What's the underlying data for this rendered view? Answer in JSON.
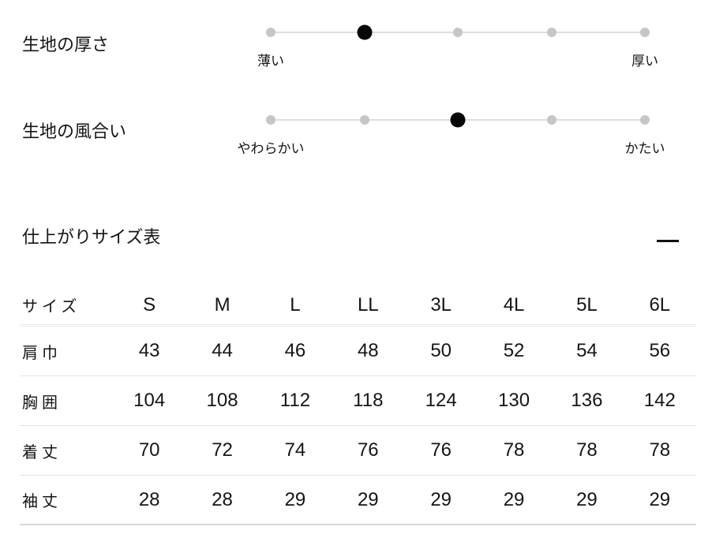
{
  "scales": {
    "items": [
      {
        "title": "生地の厚さ",
        "left_label": "薄い",
        "right_label": "厚い",
        "level": 2,
        "max": 5
      },
      {
        "title": "生地の風合い",
        "left_label": "やわらかい",
        "right_label": "かたい",
        "level": 3,
        "max": 5
      }
    ],
    "colors": {
      "active_dot": "#070707",
      "inactive_dot": "#c6c6c6",
      "track": "#dedede"
    }
  },
  "size_section": {
    "title": "仕上がりサイズ表",
    "collapse_icon": "minus-icon",
    "table": {
      "header_label": "サイズ",
      "columns": [
        "S",
        "M",
        "L",
        "LL",
        "3L",
        "4L",
        "5L",
        "6L"
      ],
      "rows": [
        {
          "label": "肩巾",
          "values": [
            "43",
            "44",
            "46",
            "48",
            "50",
            "52",
            "54",
            "56"
          ]
        },
        {
          "label": "胸囲",
          "values": [
            "104",
            "108",
            "112",
            "118",
            "124",
            "130",
            "136",
            "142"
          ]
        },
        {
          "label": "着丈",
          "values": [
            "70",
            "72",
            "74",
            "76",
            "76",
            "78",
            "78",
            "78"
          ]
        },
        {
          "label": "袖丈",
          "values": [
            "28",
            "28",
            "29",
            "29",
            "29",
            "29",
            "29",
            "29"
          ]
        }
      ]
    }
  }
}
